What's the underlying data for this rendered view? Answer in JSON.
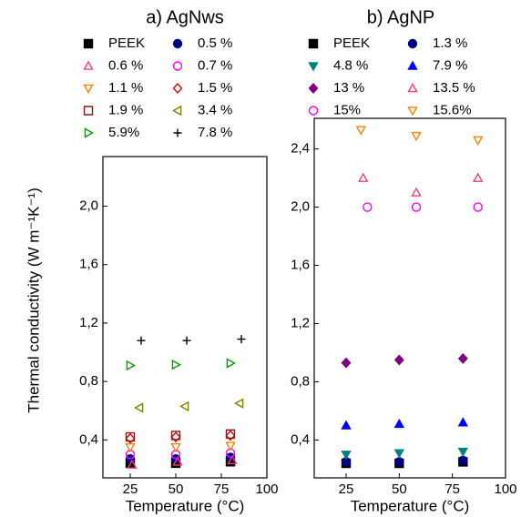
{
  "chart_data": [
    {
      "type": "scatter",
      "title": "a) AgNws",
      "y_label": "Thermal conductivity (W m⁻¹K⁻¹)",
      "x_label": "Temperature (°C)",
      "xlim": [
        10,
        100
      ],
      "xticks": [
        25,
        50,
        75,
        100
      ],
      "ylim": [
        0.14,
        2.34
      ],
      "yticks": [
        {
          "value": 0.4,
          "label": "0,4"
        },
        {
          "value": 0.8,
          "label": "0,8"
        },
        {
          "value": 1.2,
          "label": "1,2"
        },
        {
          "value": 1.6,
          "label": "1,6"
        },
        {
          "value": 2.0,
          "label": "2,0"
        }
      ],
      "series": [
        {
          "name": "PEEK",
          "color": "#000000",
          "marker": "square",
          "filled": true,
          "x": [
            25,
            50,
            80
          ],
          "values": [
            0.24,
            0.24,
            0.25
          ]
        },
        {
          "name": "0.5 %",
          "color": "#000080",
          "marker": "circle",
          "filled": true,
          "x": [
            25,
            50,
            80
          ],
          "values": [
            0.27,
            0.27,
            0.28
          ]
        },
        {
          "name": "0.6 %",
          "color": "#ff3c78",
          "marker": "triangle-up",
          "filled": false,
          "x": [
            26,
            51,
            81
          ],
          "values": [
            0.23,
            0.25,
            0.26
          ]
        },
        {
          "name": "0.7 %",
          "color": "#ff00ff",
          "marker": "circle",
          "filled": false,
          "x": [
            25,
            50,
            80
          ],
          "values": [
            0.3,
            0.3,
            0.31
          ]
        },
        {
          "name": "1.1 %",
          "color": "#ff8000",
          "marker": "triangle-down",
          "filled": false,
          "x": [
            25,
            50,
            80
          ],
          "values": [
            0.35,
            0.35,
            0.36
          ]
        },
        {
          "name": "1.5 %",
          "color": "#e00000",
          "marker": "diamond",
          "filled": false,
          "x": [
            25,
            50,
            80
          ],
          "values": [
            0.41,
            0.42,
            0.43
          ]
        },
        {
          "name": "1.9 %",
          "color": "#8b1a1a",
          "marker": "square",
          "filled": false,
          "x": [
            25,
            50,
            80
          ],
          "values": [
            0.42,
            0.43,
            0.44
          ]
        },
        {
          "name": "3.4 %",
          "color": "#808000",
          "marker": "triangle-left",
          "filled": false,
          "x": [
            30,
            55,
            85
          ],
          "values": [
            0.62,
            0.63,
            0.65
          ]
        },
        {
          "name": "5.9%",
          "color": "#00a000",
          "marker": "triangle-right",
          "filled": false,
          "x": [
            25,
            50,
            80
          ],
          "values": [
            0.91,
            0.915,
            0.925
          ]
        },
        {
          "name": "7.8 %",
          "color": "#000000",
          "marker": "plus",
          "filled": false,
          "x": [
            31,
            56,
            86
          ],
          "values": [
            1.08,
            1.08,
            1.09
          ]
        }
      ]
    },
    {
      "type": "scatter",
      "title": "b) AgNP",
      "x_label": "Temperature (°C)",
      "xlim": [
        10,
        100
      ],
      "xticks": [
        25,
        50,
        75,
        100
      ],
      "ylim": [
        0.14,
        2.61
      ],
      "yticks": [
        {
          "value": 0.4,
          "label": "0,4"
        },
        {
          "value": 0.8,
          "label": "0,8"
        },
        {
          "value": 1.2,
          "label": "1,2"
        },
        {
          "value": 1.6,
          "label": "1,6"
        },
        {
          "value": 2.0,
          "label": "2,0"
        },
        {
          "value": 2.4,
          "label": "2,4"
        }
      ],
      "series": [
        {
          "name": "PEEK",
          "color": "#000000",
          "marker": "square",
          "filled": true,
          "x": [
            25,
            50,
            80
          ],
          "values": [
            0.24,
            0.24,
            0.25
          ]
        },
        {
          "name": "1.3 %",
          "color": "#000080",
          "marker": "circle",
          "filled": true,
          "x": [
            25,
            50,
            80
          ],
          "values": [
            0.25,
            0.25,
            0.26
          ]
        },
        {
          "name": "4.8 %",
          "color": "#008080",
          "marker": "triangle-down",
          "filled": true,
          "x": [
            25,
            50,
            80
          ],
          "values": [
            0.3,
            0.31,
            0.32
          ]
        },
        {
          "name": "7.9 %",
          "color": "#0000ff",
          "marker": "triangle-up",
          "filled": true,
          "x": [
            25,
            50,
            80
          ],
          "values": [
            0.5,
            0.51,
            0.52
          ]
        },
        {
          "name": "13 %",
          "color": "#800080",
          "marker": "diamond",
          "filled": true,
          "x": [
            25,
            50,
            80
          ],
          "values": [
            0.93,
            0.95,
            0.96
          ]
        },
        {
          "name": "13.5 %",
          "color": "#ff3c78",
          "marker": "triangle-up",
          "filled": false,
          "x": [
            33,
            58,
            87
          ],
          "values": [
            2.2,
            2.1,
            2.2
          ]
        },
        {
          "name": "15%",
          "color": "#ff00ff",
          "marker": "circle",
          "filled": false,
          "x": [
            35,
            58,
            87
          ],
          "values": [
            2.0,
            2.0,
            2.0
          ]
        },
        {
          "name": "15.6%",
          "color": "#ff8000",
          "marker": "triangle-down",
          "filled": false,
          "x": [
            32,
            58,
            87
          ],
          "values": [
            2.53,
            2.49,
            2.46
          ]
        }
      ]
    }
  ]
}
